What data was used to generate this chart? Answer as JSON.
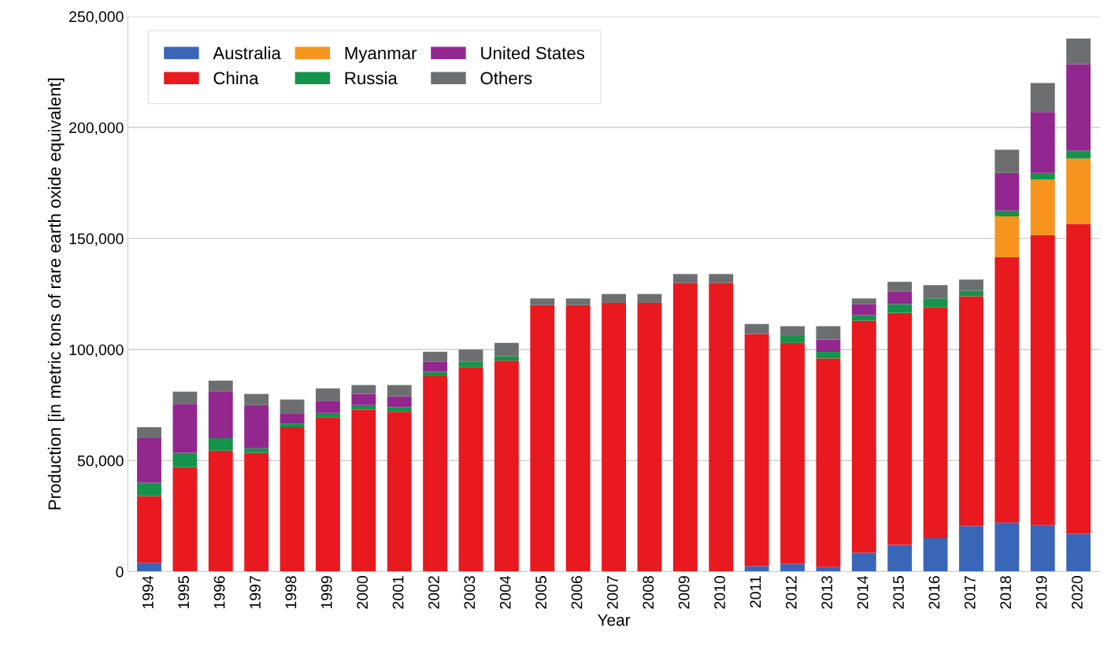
{
  "chart_data": {
    "type": "bar",
    "stacked": true,
    "xlabel": "Year",
    "ylabel": "Production [in metric tons of rare earth oxide equivalent]",
    "categories": [
      "1994",
      "1995",
      "1996",
      "1997",
      "1998",
      "1999",
      "2000",
      "2001",
      "2002",
      "2003",
      "2004",
      "2005",
      "2006",
      "2007",
      "2008",
      "2009",
      "2010",
      "2011",
      "2012",
      "2013",
      "2014",
      "2015",
      "2016",
      "2017",
      "2018",
      "2019",
      "2020"
    ],
    "series": [
      {
        "name": "Australia",
        "color": "#3a66b8",
        "values": [
          4000,
          0,
          0,
          0,
          0,
          0,
          0,
          0,
          0,
          0,
          0,
          0,
          0,
          0,
          0,
          0,
          0,
          2500,
          3500,
          2000,
          8500,
          12000,
          15000,
          20500,
          22000,
          21000,
          17000
        ]
      },
      {
        "name": "China",
        "color": "#e8191f",
        "values": [
          30000,
          47000,
          54500,
          53500,
          65000,
          69500,
          73000,
          72000,
          88000,
          92000,
          95000,
          120000,
          120000,
          121000,
          121000,
          130000,
          130000,
          104500,
          99500,
          94000,
          104500,
          104500,
          104000,
          103500,
          119500,
          130500,
          139500
        ]
      },
      {
        "name": "Myanmar",
        "color": "#f7941d",
        "values": [
          0,
          0,
          0,
          0,
          0,
          0,
          0,
          0,
          0,
          0,
          0,
          0,
          0,
          0,
          0,
          0,
          0,
          0,
          0,
          0,
          0,
          0,
          0,
          0,
          18500,
          25000,
          29500
        ]
      },
      {
        "name": "Russia",
        "color": "#13944a",
        "values": [
          6000,
          6500,
          5500,
          2000,
          1500,
          2000,
          2000,
          2000,
          2000,
          2500,
          2000,
          0,
          0,
          0,
          0,
          0,
          0,
          0,
          3500,
          3000,
          2500,
          4000,
          4000,
          2500,
          2500,
          3000,
          3500
        ]
      },
      {
        "name": "United States",
        "color": "#92278f",
        "values": [
          20000,
          22000,
          21000,
          19500,
          4500,
          5500,
          5000,
          5000,
          4500,
          0,
          0,
          0,
          0,
          0,
          0,
          0,
          0,
          0,
          0,
          5500,
          5000,
          5500,
          0,
          0,
          17000,
          27500,
          39000
        ]
      },
      {
        "name": "Others",
        "color": "#6d6e70",
        "values": [
          5000,
          5500,
          5000,
          5000,
          6500,
          5500,
          4000,
          5000,
          4500,
          5500,
          6000,
          3000,
          3000,
          4000,
          4000,
          4000,
          4000,
          4500,
          4000,
          6000,
          2500,
          4500,
          6000,
          5000,
          10500,
          13000,
          11500
        ]
      }
    ],
    "ylim": [
      0,
      250000
    ],
    "yticks": [
      {
        "value": 0,
        "label": "0"
      },
      {
        "value": 50000,
        "label": "50,000"
      },
      {
        "value": 100000,
        "label": "100,000"
      },
      {
        "value": 150000,
        "label": "150,000"
      },
      {
        "value": 200000,
        "label": "200,000"
      },
      {
        "value": 250000,
        "label": "250,000"
      }
    ],
    "grid": "y",
    "legend": "top left"
  }
}
